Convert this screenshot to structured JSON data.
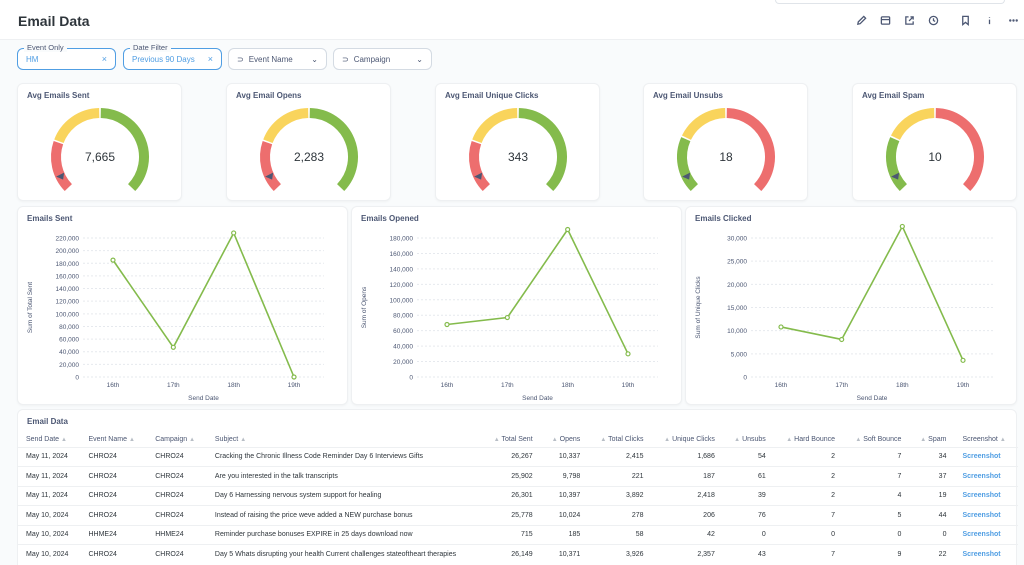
{
  "page": {
    "title": "Email Data"
  },
  "header_icons": [
    "pencil-icon",
    "subscription-icon",
    "share-icon",
    "clock-icon",
    "bookmark-icon",
    "info-icon",
    "more-icon"
  ],
  "filters": [
    {
      "label": "Event Only",
      "value": "HM",
      "active": true
    },
    {
      "label": "Date Filter",
      "value": "Previous 90 Days",
      "active": true
    },
    {
      "label": "",
      "value": "Event Name",
      "active": false
    },
    {
      "label": "",
      "value": "Campaign",
      "active": false
    }
  ],
  "gauges": [
    {
      "title": "Avg Emails Sent",
      "value_text": "7,665",
      "value": 7665,
      "segments": [
        "red",
        "yellow",
        "green"
      ]
    },
    {
      "title": "Avg Email Opens",
      "value_text": "2,283",
      "value": 2283,
      "segments": [
        "red",
        "yellow",
        "green"
      ]
    },
    {
      "title": "Avg Email Unique Clicks",
      "value_text": "343",
      "value": 343,
      "segments": [
        "red",
        "yellow",
        "green"
      ]
    },
    {
      "title": "Avg Email Unsubs",
      "value_text": "18",
      "value": 18,
      "segments": [
        "green",
        "yellow",
        "red"
      ]
    },
    {
      "title": "Avg Email Spam",
      "value_text": "10",
      "value": 10,
      "segments": [
        "green",
        "yellow",
        "red"
      ]
    }
  ],
  "colors": {
    "red": "#ed6e6e",
    "yellow": "#f9d45c",
    "green": "#84bb4c",
    "line": "#84bb4c",
    "link": "#509ee3"
  },
  "chart_data": [
    {
      "type": "line",
      "title": "Emails Sent",
      "xlabel": "Send Date",
      "ylabel": "Sum of Total Sent",
      "categories": [
        "16th",
        "17th",
        "18th",
        "19th"
      ],
      "values": [
        185000,
        47000,
        228000,
        0
      ],
      "ylim": [
        0,
        220000
      ],
      "yticks": [
        0,
        20000,
        40000,
        60000,
        80000,
        100000,
        120000,
        140000,
        160000,
        180000,
        200000,
        220000
      ],
      "ytick_labels": [
        "0",
        "20,000",
        "40,000",
        "60,000",
        "80,000",
        "100,000",
        "120,000",
        "140,000",
        "160,000",
        "180,000",
        "200,000",
        "220,000"
      ]
    },
    {
      "type": "line",
      "title": "Emails Opened",
      "xlabel": "Send Date",
      "ylabel": "Sum of Opens",
      "categories": [
        "16th",
        "17th",
        "18th",
        "19th"
      ],
      "values": [
        68000,
        77000,
        191000,
        30000
      ],
      "ylim": [
        0,
        180000
      ],
      "yticks": [
        0,
        20000,
        40000,
        60000,
        80000,
        100000,
        120000,
        140000,
        160000,
        180000
      ],
      "ytick_labels": [
        "0",
        "20,000",
        "40,000",
        "60,000",
        "80,000",
        "100,000",
        "120,000",
        "140,000",
        "160,000",
        "180,000"
      ]
    },
    {
      "type": "line",
      "title": "Emails Clicked",
      "xlabel": "Send Date",
      "ylabel": "Sum of Unique Clicks",
      "categories": [
        "16th",
        "17th",
        "18th",
        "19th"
      ],
      "values": [
        10800,
        8100,
        32500,
        3600
      ],
      "ylim": [
        0,
        30000
      ],
      "yticks": [
        0,
        5000,
        10000,
        15000,
        20000,
        25000,
        30000
      ],
      "ytick_labels": [
        "0",
        "5,000",
        "10,000",
        "15,000",
        "20,000",
        "25,000",
        "30,000"
      ]
    }
  ],
  "table": {
    "title": "Email Data",
    "columns": [
      "Send Date",
      "Event Name",
      "Campaign",
      "Subject",
      "Total Sent",
      "Opens",
      "Total Clicks",
      "Unique Clicks",
      "Unsubs",
      "Hard Bounce",
      "Soft Bounce",
      "Spam",
      "Screenshot"
    ],
    "rows": [
      [
        "May 11, 2024",
        "CHRO24",
        "CHRO24",
        "Cracking the Chronic Illness Code Reminder Day 6 Interviews Gifts",
        "26,267",
        "10,337",
        "2,415",
        "1,686",
        "54",
        "2",
        "7",
        "34",
        "Screenshot"
      ],
      [
        "May 11, 2024",
        "CHRO24",
        "CHRO24",
        "Are you interested in the talk transcripts",
        "25,902",
        "9,798",
        "221",
        "187",
        "61",
        "2",
        "7",
        "37",
        "Screenshot"
      ],
      [
        "May 11, 2024",
        "CHRO24",
        "CHRO24",
        "Day 6 Harnessing nervous system support for healing",
        "26,301",
        "10,397",
        "3,892",
        "2,418",
        "39",
        "2",
        "4",
        "19",
        "Screenshot"
      ],
      [
        "May 10, 2024",
        "CHRO24",
        "CHRO24",
        "Instead of raising the price weve added a NEW purchase bonus",
        "25,778",
        "10,024",
        "278",
        "206",
        "76",
        "7",
        "5",
        "44",
        "Screenshot"
      ],
      [
        "May 10, 2024",
        "HHME24",
        "HHME24",
        "Reminder purchase bonuses EXPIRE in 25 days download now",
        "715",
        "185",
        "58",
        "42",
        "0",
        "0",
        "0",
        "0",
        "Screenshot"
      ],
      [
        "May 10, 2024",
        "CHRO24",
        "CHRO24",
        "Day 5 Whats disrupting your health Current challenges stateoftheart therapies",
        "26,149",
        "10,371",
        "3,926",
        "2,357",
        "43",
        "7",
        "9",
        "22",
        "Screenshot"
      ]
    ]
  }
}
